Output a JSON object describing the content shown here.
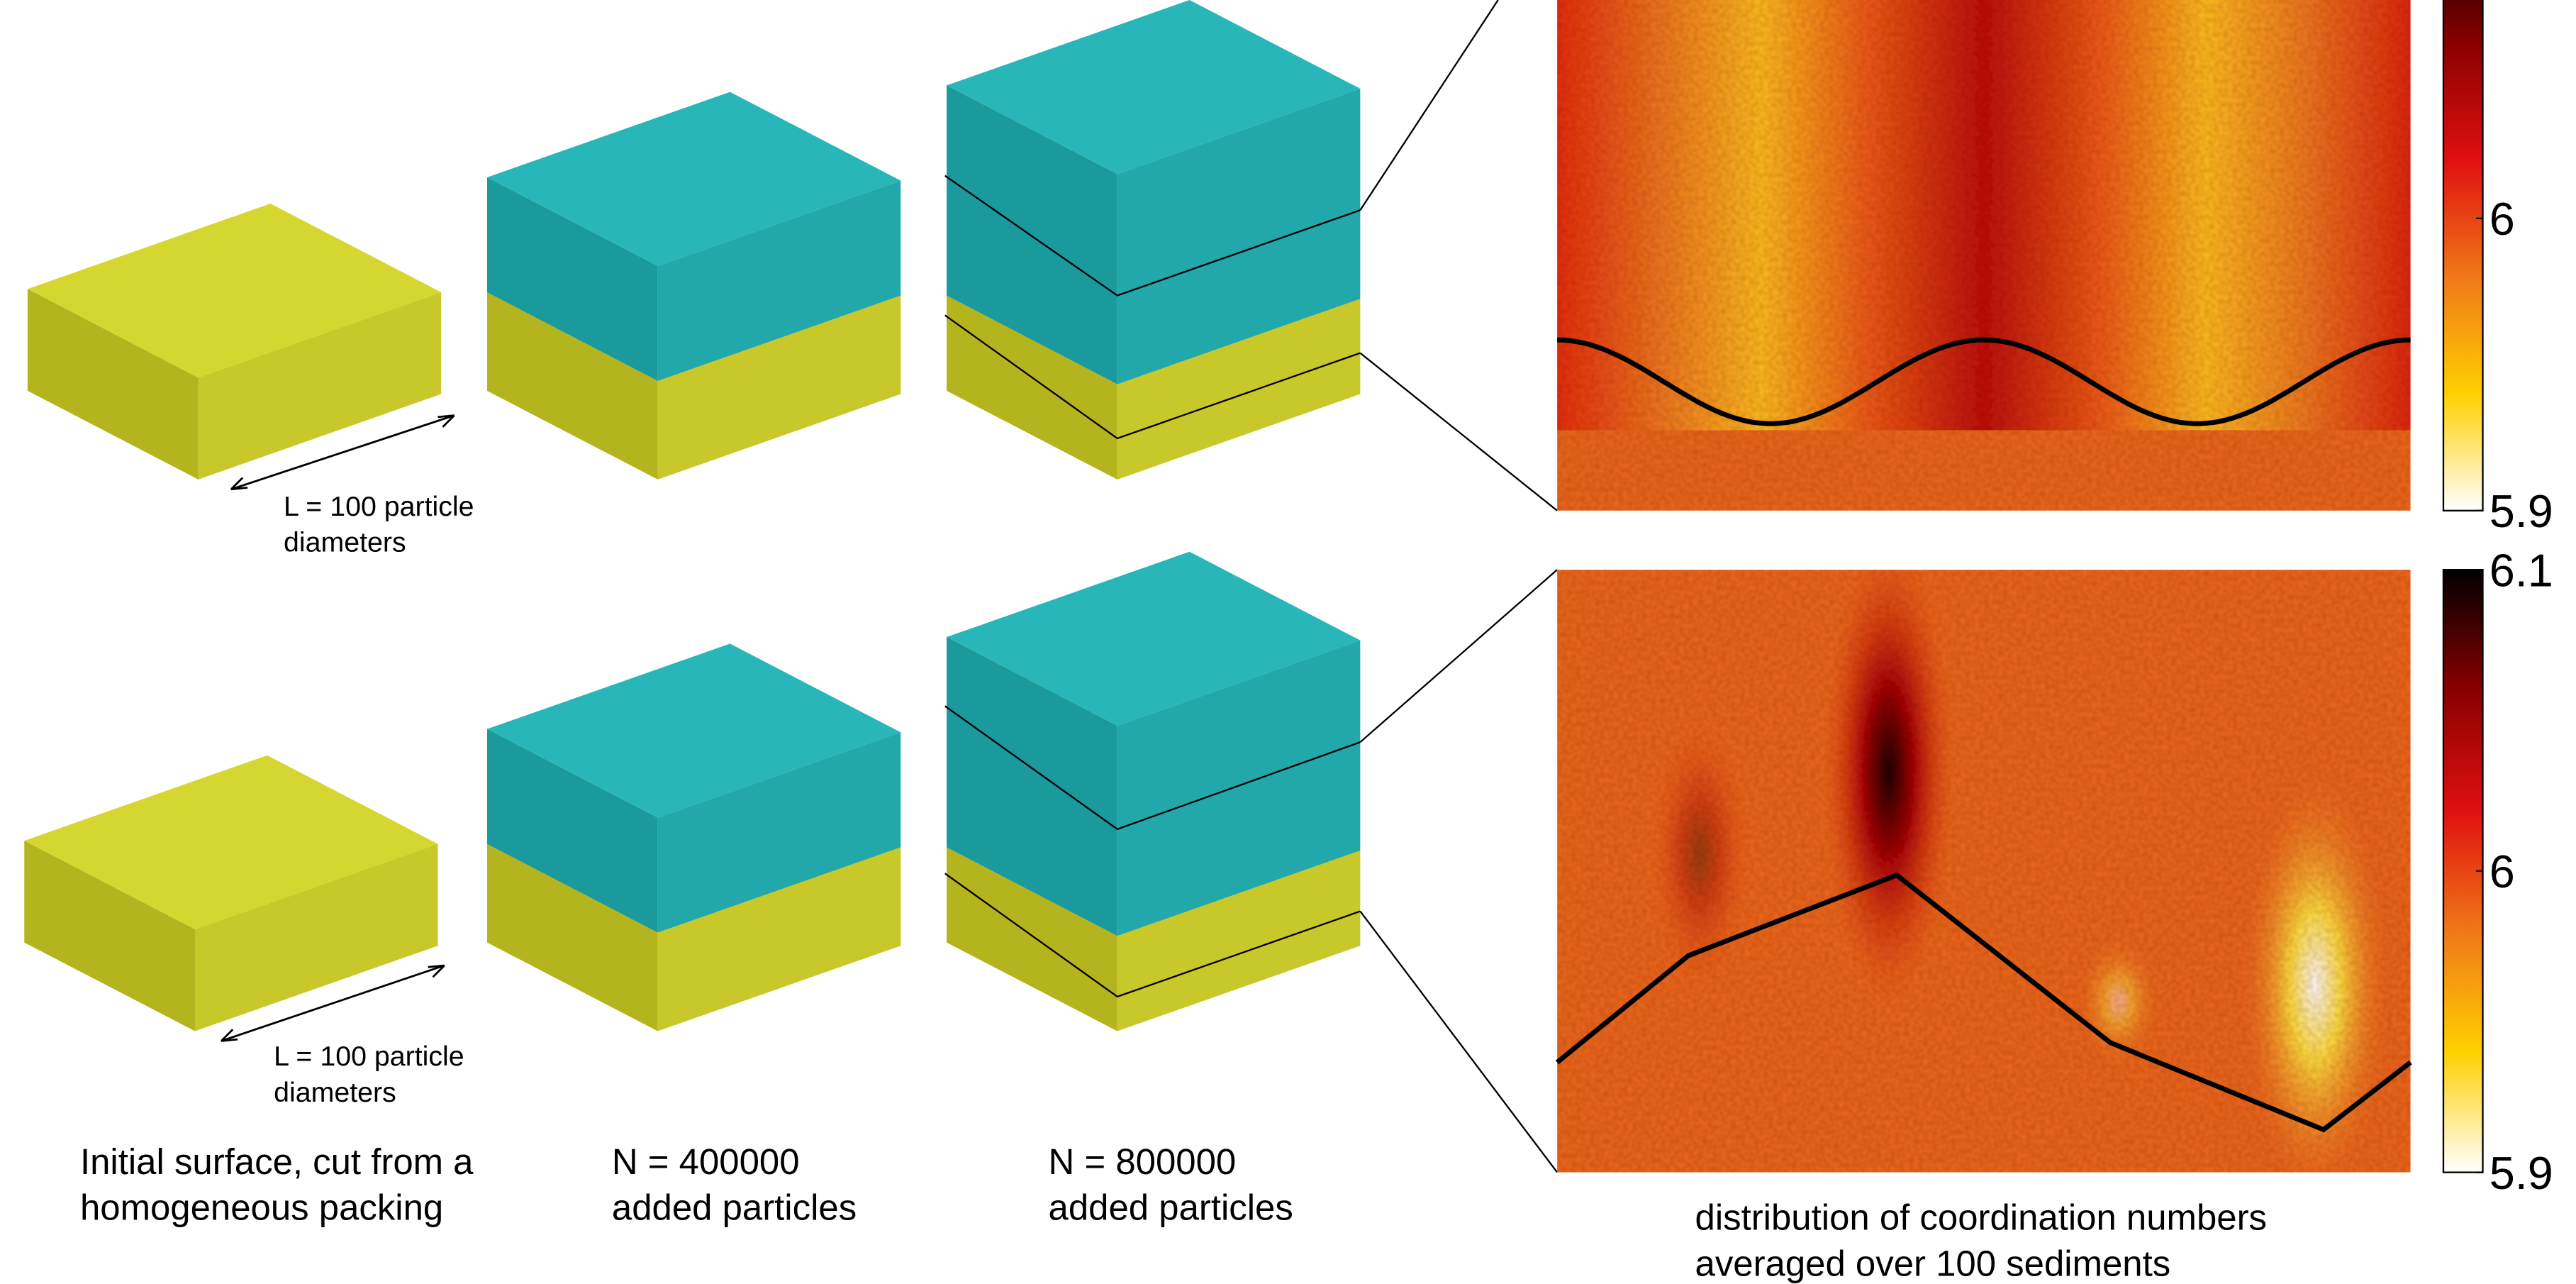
{
  "scale_labels": [
    [
      "L = 100 particle",
      "diameters"
    ],
    [
      "L = 100 particle",
      "diameters"
    ]
  ],
  "captions": [
    [
      "Initial surface, cut from a",
      "homogeneous packing"
    ],
    [
      "N = 400000",
      "added particles"
    ],
    [
      "N = 800000",
      "added particles"
    ]
  ],
  "heatmap_caption": [
    "distribution of coordination numbers",
    "averaged over 100 sediments"
  ],
  "colorbars": [
    {
      "lim": [
        5.9,
        6.1
      ],
      "ticks": [
        5.9,
        6
      ]
    },
    {
      "lim": [
        5.9,
        6.1
      ],
      "ticks": [
        5.9,
        6,
        6.1
      ]
    }
  ]
}
